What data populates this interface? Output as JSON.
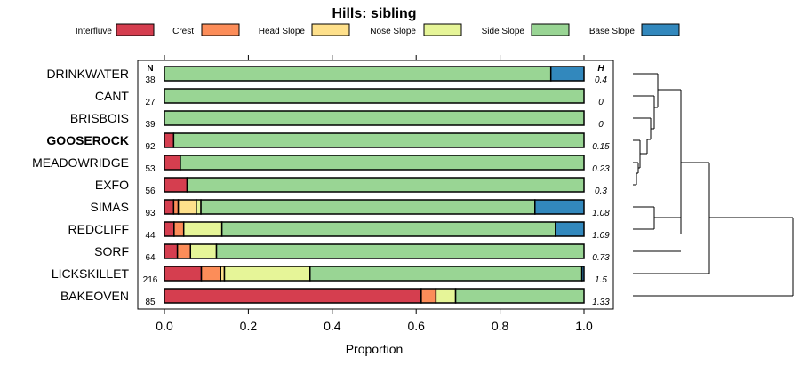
{
  "chart_data": {
    "type": "bar",
    "orientation": "horizontal",
    "stacked": true,
    "title": "Hills: sibling",
    "xlabel": "Proportion",
    "xlim": [
      0,
      1
    ],
    "xticks": [
      "0.0",
      "0.2",
      "0.4",
      "0.6",
      "0.8",
      "1.0"
    ],
    "xtick_values": [
      0,
      0.2,
      0.4,
      0.6,
      0.8,
      1.0
    ],
    "n_header": "N",
    "h_header": "H",
    "legend": [
      {
        "name": "Interfluve",
        "color": "#D53E4F"
      },
      {
        "name": "Crest",
        "color": "#FC8D59"
      },
      {
        "name": "Head Slope",
        "color": "#FEE08B"
      },
      {
        "name": "Nose Slope",
        "color": "#E6F598"
      },
      {
        "name": "Side Slope",
        "color": "#99D594"
      },
      {
        "name": "Base Slope",
        "color": "#3288BD"
      }
    ],
    "rows": [
      {
        "label": "DRINKWATER",
        "n": "38",
        "h": "0.4",
        "bold": false,
        "values": [
          0,
          0,
          0,
          0,
          0.921,
          0.079
        ]
      },
      {
        "label": "CANT",
        "n": "27",
        "h": "0",
        "bold": false,
        "values": [
          0,
          0,
          0,
          0,
          1.0,
          0
        ]
      },
      {
        "label": "BRISBOIS",
        "n": "39",
        "h": "0",
        "bold": false,
        "values": [
          0,
          0,
          0,
          0,
          1.0,
          0
        ]
      },
      {
        "label": "GOOSEROCK",
        "n": "92",
        "h": "0.15",
        "bold": true,
        "values": [
          0.022,
          0,
          0,
          0,
          0.978,
          0
        ]
      },
      {
        "label": "MEADOWRIDGE",
        "n": "53",
        "h": "0.23",
        "bold": false,
        "values": [
          0.038,
          0,
          0,
          0,
          0.962,
          0
        ]
      },
      {
        "label": "EXFO",
        "n": "56",
        "h": "0.3",
        "bold": false,
        "values": [
          0.054,
          0,
          0,
          0,
          0.946,
          0
        ]
      },
      {
        "label": "SIMAS",
        "n": "93",
        "h": "1.08",
        "bold": false,
        "values": [
          0.022,
          0.011,
          0.043,
          0.011,
          0.796,
          0.117
        ]
      },
      {
        "label": "REDCLIFF",
        "n": "44",
        "h": "1.09",
        "bold": false,
        "values": [
          0.023,
          0.023,
          0,
          0.091,
          0.795,
          0.068
        ]
      },
      {
        "label": "SORF",
        "n": "64",
        "h": "0.73",
        "bold": false,
        "values": [
          0.031,
          0.031,
          0,
          0.062,
          0.876,
          0
        ]
      },
      {
        "label": "LICKSKILLET",
        "n": "216",
        "h": "1.5",
        "bold": false,
        "values": [
          0.088,
          0.046,
          0.009,
          0.204,
          0.648,
          0.005
        ]
      },
      {
        "label": "BAKEOVEN",
        "n": "85",
        "h": "1.33",
        "bold": false,
        "values": [
          0.612,
          0.035,
          0,
          0.047,
          0.306,
          0
        ]
      }
    ]
  }
}
